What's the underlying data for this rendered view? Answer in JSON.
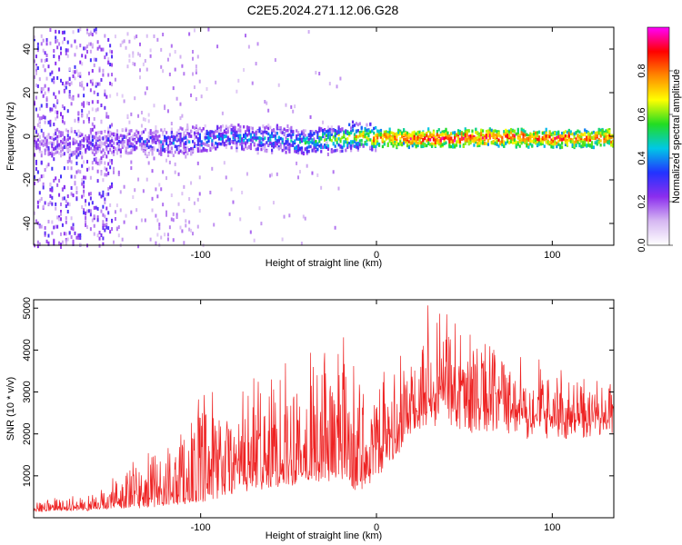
{
  "figure_title": "C2E5.2024.271.12.06.G28",
  "colors": {
    "snr_line": "#ee2222",
    "colormap": [
      "#ffffff",
      "#d6b8f2",
      "#8c2eee",
      "#2233ff",
      "#00c8e6",
      "#22dd22",
      "#ffff00",
      "#ff8800",
      "#ff0000",
      "#ff00ff"
    ]
  },
  "chart_data": [
    {
      "type": "heatmap",
      "title": "",
      "xlabel": "Height of straight line (km)",
      "ylabel": "Frequency (Hz)",
      "xlim": [
        -195,
        135
      ],
      "ylim": [
        -50,
        50
      ],
      "xticks": [
        -100,
        0,
        100
      ],
      "yticks": [
        -40,
        -20,
        0,
        20,
        40
      ],
      "colorbar": {
        "label": "Normalized spectral amplitude",
        "range": [
          0,
          1
        ],
        "ticks": [
          0.0,
          0.2,
          0.4,
          0.6,
          0.8
        ]
      },
      "ridge": {
        "description": "dominant near-zero frequency band",
        "points": [
          {
            "x": -150,
            "y": -3
          },
          {
            "x": -120,
            "y": -3
          },
          {
            "x": -90,
            "y": -1
          },
          {
            "x": -70,
            "y": -1
          },
          {
            "x": -40,
            "y": -3
          },
          {
            "x": -25,
            "y": -1
          },
          {
            "x": -10,
            "y": 0
          },
          {
            "x": 0,
            "y": -1
          },
          {
            "x": 50,
            "y": -1
          },
          {
            "x": 100,
            "y": -1
          },
          {
            "x": 135,
            "y": -1
          }
        ],
        "amplitude_profile": [
          {
            "x": -195,
            "amp": 0.15
          },
          {
            "x": -150,
            "amp": 0.25
          },
          {
            "x": -100,
            "amp": 0.35
          },
          {
            "x": -50,
            "amp": 0.4
          },
          {
            "x": -20,
            "amp": 0.6
          },
          {
            "x": 0,
            "amp": 0.8
          },
          {
            "x": 30,
            "amp": 0.9
          },
          {
            "x": 100,
            "amp": 0.85
          },
          {
            "x": 135,
            "amp": 0.8
          }
        ]
      },
      "noise_region": {
        "x_from": -195,
        "x_to": -150,
        "amp": 0.2
      }
    },
    {
      "type": "line",
      "title": "",
      "xlabel": "Height of straight line (km)",
      "ylabel": "SNR (10 * v/v)",
      "xlim": [
        -195,
        135
      ],
      "ylim": [
        0,
        5200
      ],
      "xticks": [
        -100,
        0,
        100
      ],
      "yticks": [
        1000,
        2000,
        3000,
        4000,
        5000
      ],
      "series": [
        {
          "name": "",
          "sample_step_km": 0.25,
          "baseline_envelope": [
            {
              "x": -195,
              "y": 150
            },
            {
              "x": -160,
              "y": 200
            },
            {
              "x": -140,
              "y": 250
            },
            {
              "x": -120,
              "y": 300
            },
            {
              "x": -100,
              "y": 400
            },
            {
              "x": -80,
              "y": 600
            },
            {
              "x": -60,
              "y": 800
            },
            {
              "x": -40,
              "y": 900
            },
            {
              "x": -20,
              "y": 950
            },
            {
              "x": -10,
              "y": 700
            },
            {
              "x": 0,
              "y": 1000
            },
            {
              "x": 10,
              "y": 1500
            },
            {
              "x": 20,
              "y": 2200
            },
            {
              "x": 30,
              "y": 2600
            },
            {
              "x": 40,
              "y": 2500
            },
            {
              "x": 60,
              "y": 2300
            },
            {
              "x": 80,
              "y": 2200
            },
            {
              "x": 100,
              "y": 2200
            },
            {
              "x": 120,
              "y": 2200
            },
            {
              "x": 135,
              "y": 2300
            }
          ],
          "peak_envelope": [
            {
              "x": -195,
              "y": 400
            },
            {
              "x": -160,
              "y": 500
            },
            {
              "x": -145,
              "y": 1100
            },
            {
              "x": -120,
              "y": 1600
            },
            {
              "x": -105,
              "y": 2500
            },
            {
              "x": -85,
              "y": 2800
            },
            {
              "x": -60,
              "y": 3300
            },
            {
              "x": -55,
              "y": 3800
            },
            {
              "x": -40,
              "y": 3700
            },
            {
              "x": -20,
              "y": 4200
            },
            {
              "x": -10,
              "y": 3300
            },
            {
              "x": 0,
              "y": 3000
            },
            {
              "x": 15,
              "y": 3500
            },
            {
              "x": 25,
              "y": 4600
            },
            {
              "x": 32,
              "y": 5200
            },
            {
              "x": 45,
              "y": 4600
            },
            {
              "x": 60,
              "y": 4100
            },
            {
              "x": 80,
              "y": 3700
            },
            {
              "x": 100,
              "y": 3300
            },
            {
              "x": 120,
              "y": 3000
            },
            {
              "x": 135,
              "y": 2900
            }
          ]
        }
      ]
    }
  ]
}
